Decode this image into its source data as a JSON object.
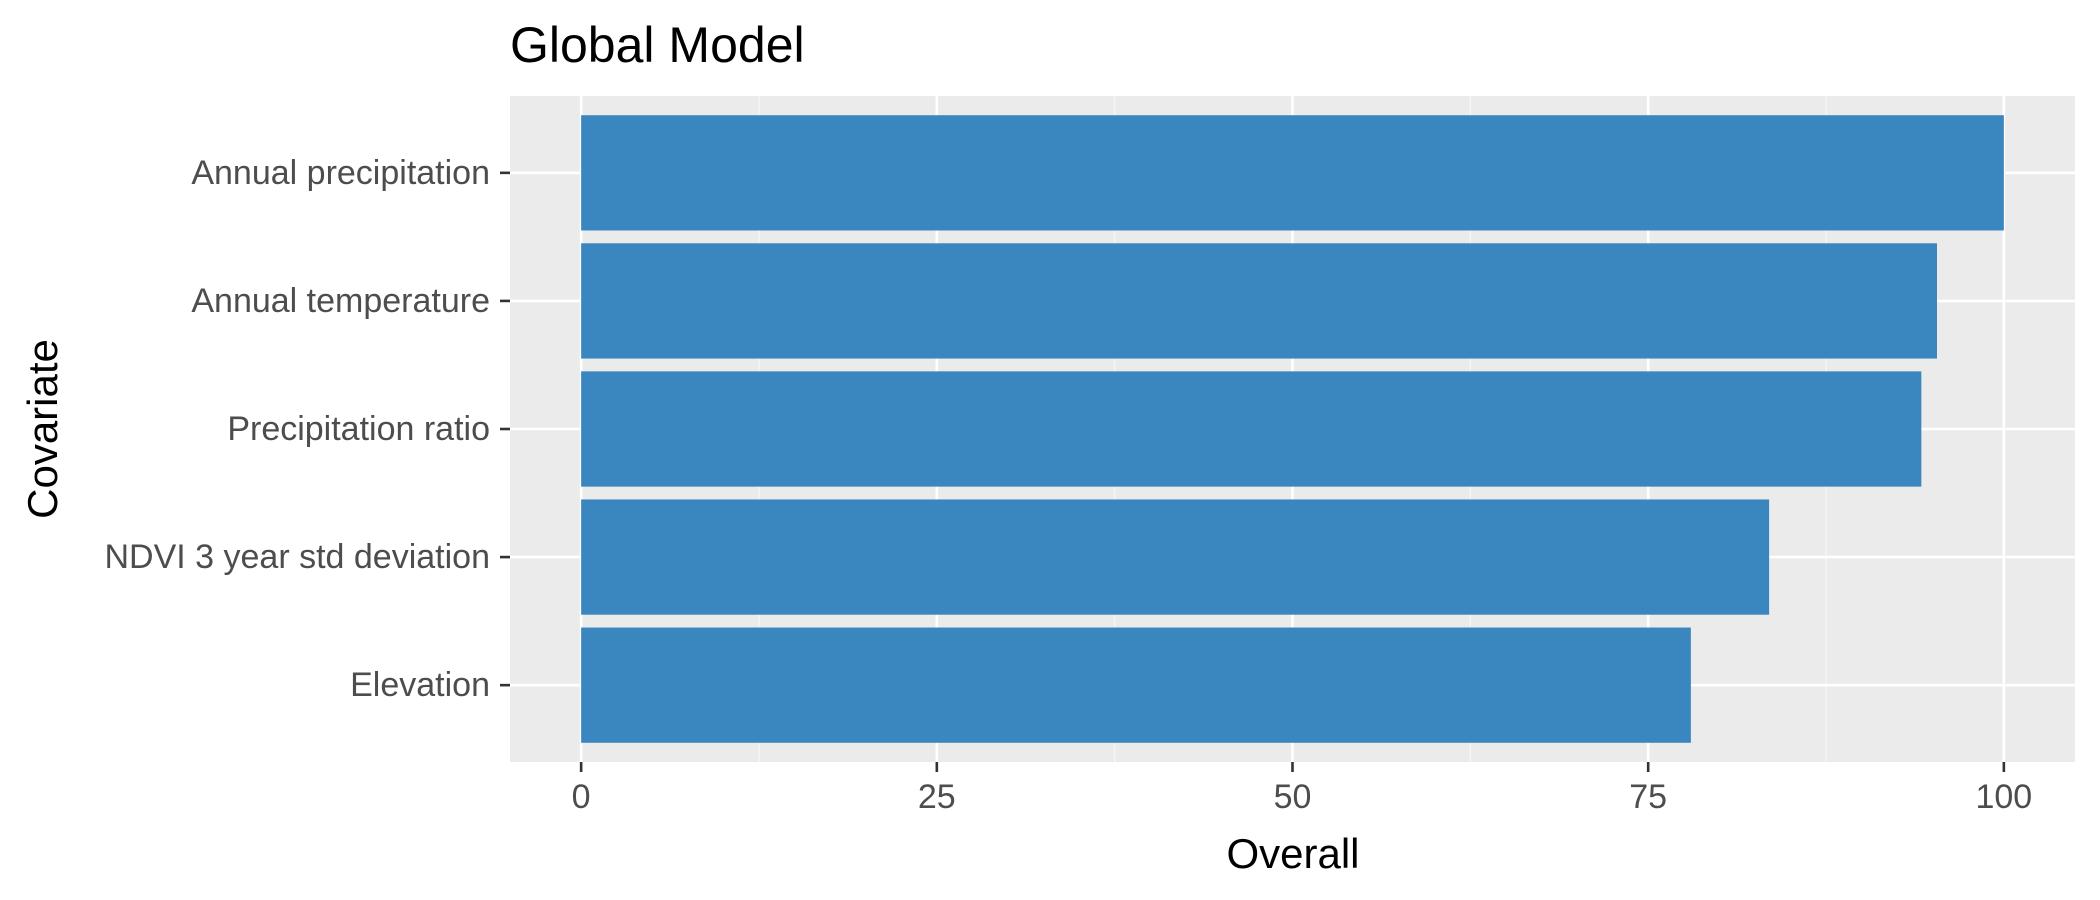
{
  "chart_data": {
    "type": "bar",
    "orientation": "horizontal",
    "title": "Global Model",
    "xlabel": "Overall",
    "ylabel": "Covariate",
    "categories": [
      "Annual precipitation",
      "Annual temperature",
      "Precipitation ratio",
      "NDVI 3 year std deviation",
      "Elevation"
    ],
    "values": [
      100,
      95.3,
      94.2,
      83.5,
      78.0
    ],
    "xlim": [
      -5,
      105
    ],
    "xticks": [
      0,
      25,
      50,
      75,
      100
    ],
    "grid": true,
    "colors": {
      "bar": "#3a87bf",
      "panel": "#ebebeb",
      "grid_major": "#ffffff",
      "tick_text": "#4d4d4d",
      "tick_mark": "#333333"
    }
  }
}
